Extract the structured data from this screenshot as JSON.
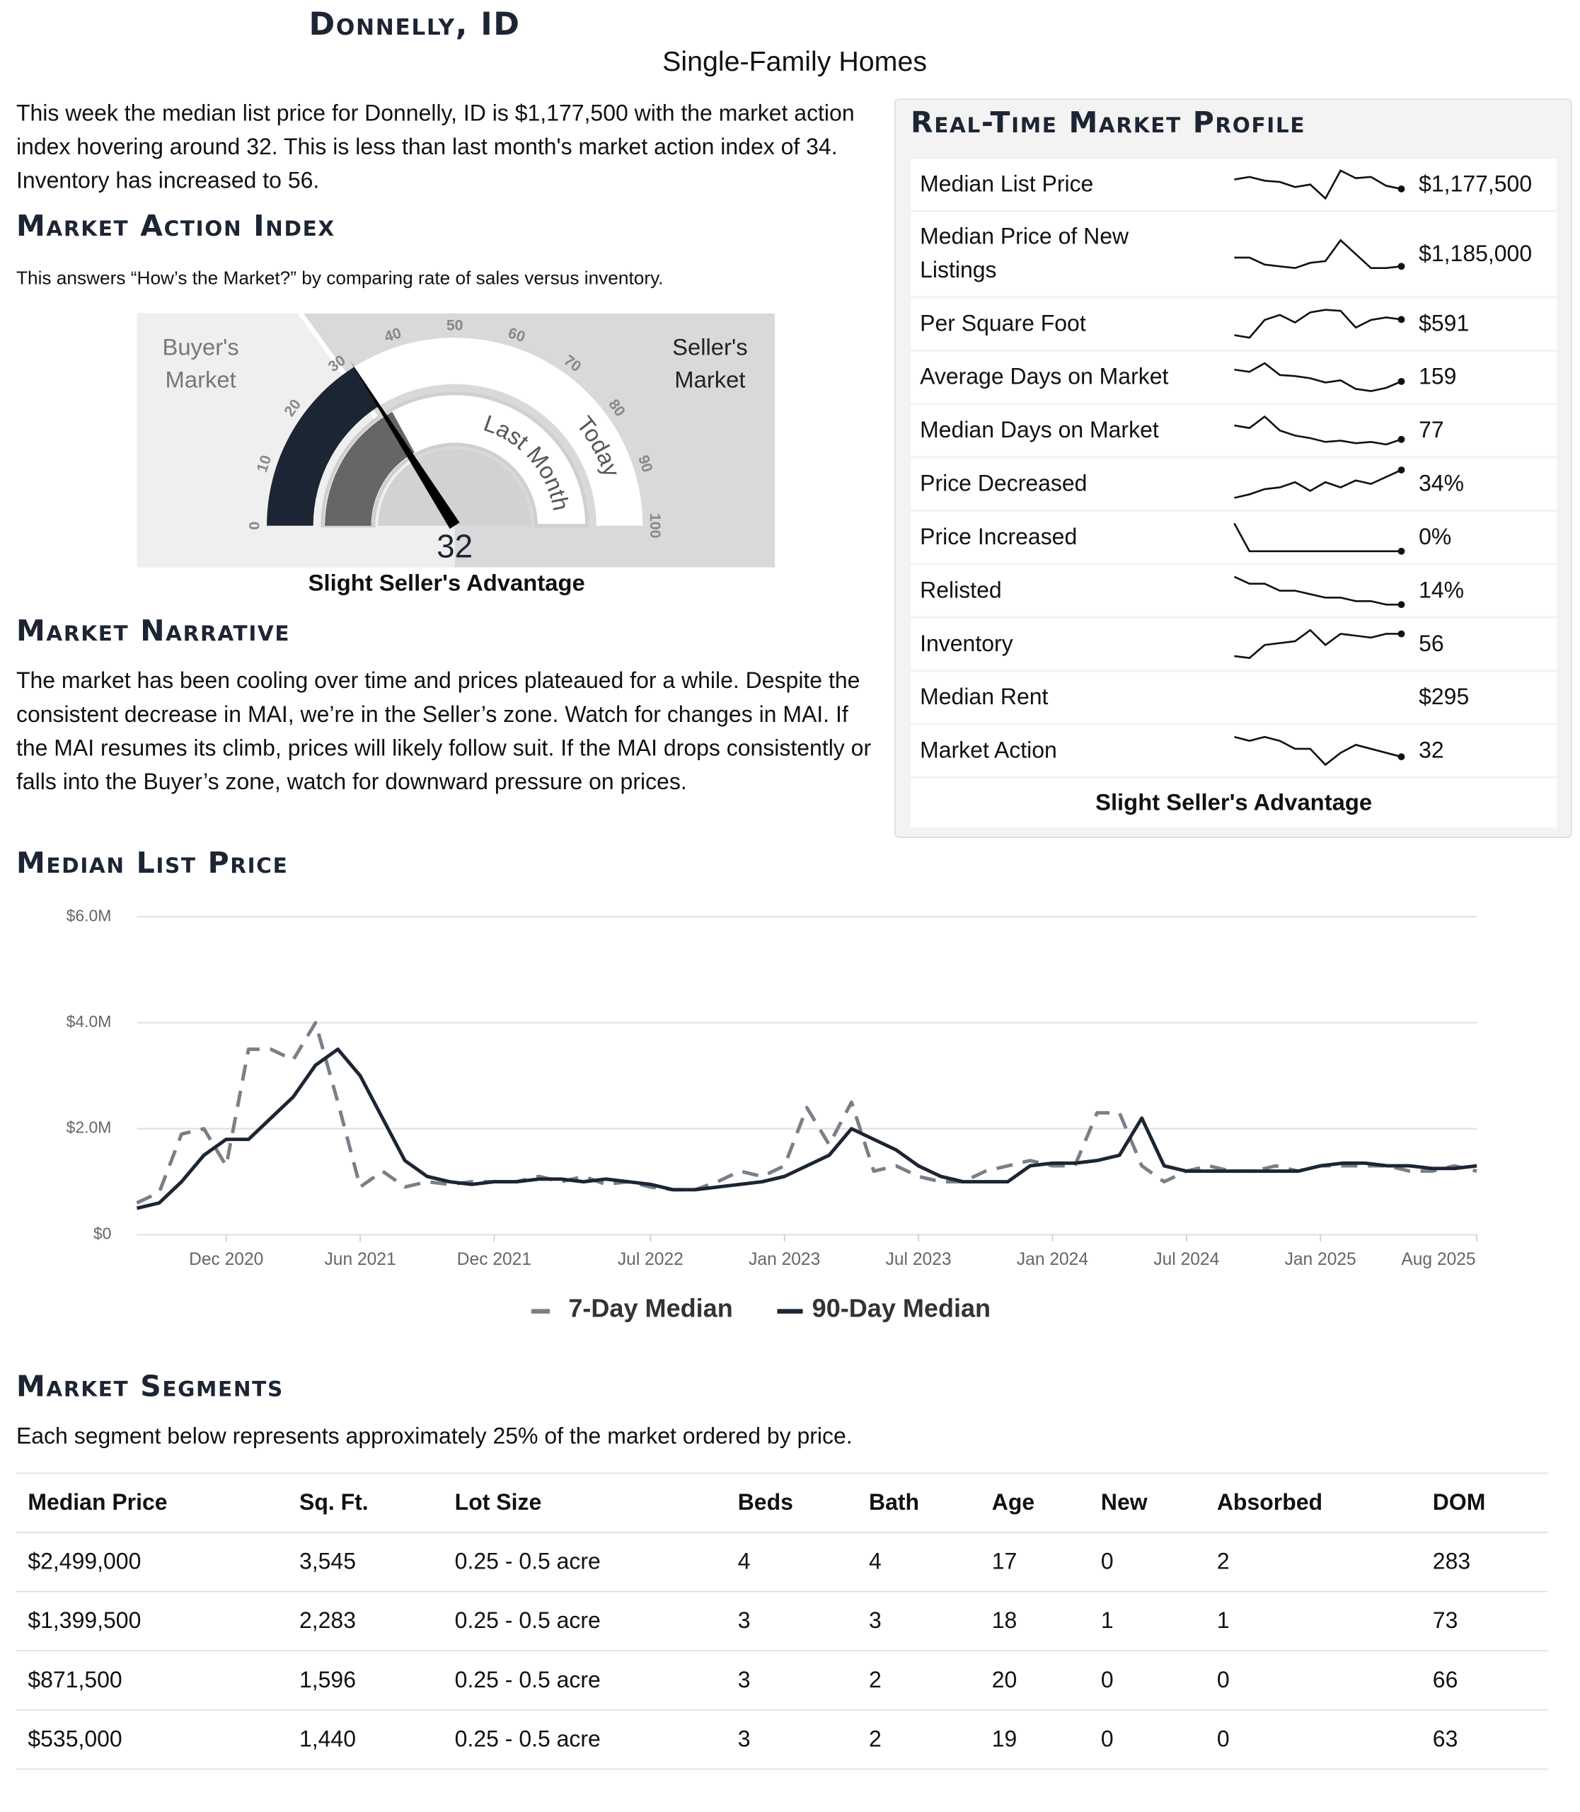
{
  "header": {
    "title": "Donnelly, ID",
    "subtitle": "Single-Family Homes"
  },
  "intro": "This week the median list price for Donnelly, ID is $1,177,500 with the market action index hovering around 32. This is less than last month's market action index of 34. Inventory has increased to 56.",
  "market_action_index": {
    "heading": "Market Action Index",
    "description": "This answers “How’s the Market?” by comparing rate of sales versus inventory.",
    "gauge": {
      "buyer_label": "Buyer's Market",
      "seller_label": "Seller's Market",
      "ticks": [
        0,
        10,
        20,
        30,
        40,
        50,
        60,
        70,
        80,
        90,
        100
      ],
      "value": 32,
      "last_month": 34,
      "buyer_zone_max": 30,
      "last_month_label": "Last Month",
      "today_label": "Today"
    },
    "caption": "Slight Seller's Advantage"
  },
  "narrative": {
    "heading": "Market Narrative",
    "text": "The market has been cooling over time and prices plateaued for a while. Despite the consistent decrease in MAI, we’re in the Seller’s zone. Watch for changes in MAI. If the MAI resumes its climb, prices will likely follow suit. If the MAI drops consistently or falls into the Buyer’s zone, watch for downward pressure on prices."
  },
  "profile": {
    "heading": "Real-Time Market Profile",
    "rows": [
      {
        "label": "Median List Price",
        "value": "$1,177,500",
        "trend": [
          1215000,
          1225000,
          1210000,
          1205000,
          1185000,
          1195000,
          1140000,
          1250000,
          1220000,
          1225000,
          1190000,
          1177500
        ]
      },
      {
        "label": "Median Price of New Listings",
        "value": "$1,185,000",
        "trend": [
          1210000,
          1210000,
          1190000,
          1185000,
          1180000,
          1195000,
          1200000,
          1260000,
          1220000,
          1180000,
          1180000,
          1185000
        ]
      },
      {
        "label": "Per Square Foot",
        "value": "$591",
        "trend": [
          560,
          555,
          590,
          600,
          585,
          605,
          610,
          608,
          575,
          590,
          595,
          591
        ]
      },
      {
        "label": "Average Days on Market",
        "value": "159",
        "trend": [
          170,
          168,
          176,
          165,
          164,
          162,
          158,
          160,
          152,
          150,
          153,
          159
        ]
      },
      {
        "label": "Median Days on Market",
        "value": "77",
        "trend": [
          88,
          86,
          95,
          84,
          80,
          78,
          75,
          76,
          74,
          75,
          73,
          77
        ]
      },
      {
        "label": "Price Decreased",
        "value": "34%",
        "trend": [
          18,
          20,
          23,
          24,
          27,
          22,
          27,
          24,
          28,
          26,
          30,
          34
        ]
      },
      {
        "label": "Price Increased",
        "value": "0%",
        "trend": [
          6,
          0,
          0,
          0,
          0,
          0,
          0,
          0,
          0,
          0,
          0,
          0
        ]
      },
      {
        "label": "Relisted",
        "value": "14%",
        "trend": [
          22,
          20,
          20,
          18,
          18,
          17,
          16,
          16,
          15,
          15,
          14,
          14
        ]
      },
      {
        "label": "Inventory",
        "value": "56",
        "trend": [
          44,
          43,
          50,
          51,
          52,
          58,
          50,
          56,
          55,
          54,
          56,
          56
        ]
      },
      {
        "label": "Median Rent",
        "value": "$295"
      },
      {
        "label": "Market Action",
        "value": "32",
        "trend": [
          37,
          36,
          37,
          36,
          34,
          34,
          30,
          33,
          35,
          34,
          33,
          32
        ]
      }
    ],
    "caption": "Slight Seller's Advantage"
  },
  "chart_data": {
    "type": "line",
    "title": "Median List Price",
    "x": [
      "2020-08",
      "2020-09",
      "2020-10",
      "2020-11",
      "2020-12",
      "2021-01",
      "2021-02",
      "2021-03",
      "2021-04",
      "2021-05",
      "2021-06",
      "2021-07",
      "2021-08",
      "2021-09",
      "2021-10",
      "2021-11",
      "2021-12",
      "2022-01",
      "2022-02",
      "2022-03",
      "2022-04",
      "2022-05",
      "2022-06",
      "2022-07",
      "2022-08",
      "2022-09",
      "2022-10",
      "2022-11",
      "2022-12",
      "2023-01",
      "2023-02",
      "2023-03",
      "2023-04",
      "2023-05",
      "2023-06",
      "2023-07",
      "2023-08",
      "2023-09",
      "2023-10",
      "2023-11",
      "2023-12",
      "2024-01",
      "2024-02",
      "2024-03",
      "2024-04",
      "2024-05",
      "2024-06",
      "2024-07",
      "2024-08",
      "2024-09",
      "2024-10",
      "2024-11",
      "2024-12",
      "2025-01",
      "2025-02",
      "2025-03",
      "2025-04",
      "2025-05",
      "2025-06",
      "2025-07",
      "2025-08"
    ],
    "series": [
      {
        "name": "7-Day Median",
        "color": "#7a7f87",
        "line_style": "dashed",
        "values": [
          0.6,
          0.8,
          1.9,
          2.0,
          1.3,
          3.5,
          3.5,
          3.3,
          4.0,
          2.5,
          0.9,
          1.2,
          0.9,
          1.0,
          0.95,
          1.0,
          1.0,
          1.0,
          1.1,
          1.0,
          1.1,
          0.95,
          1.0,
          0.9,
          0.85,
          0.85,
          1.0,
          1.2,
          1.1,
          1.3,
          2.4,
          1.7,
          2.5,
          1.2,
          1.3,
          1.1,
          1.0,
          1.0,
          1.2,
          1.3,
          1.4,
          1.3,
          1.3,
          2.3,
          2.3,
          1.3,
          1.0,
          1.2,
          1.3,
          1.2,
          1.2,
          1.3,
          1.2,
          1.3,
          1.3,
          1.3,
          1.3,
          1.2,
          1.2,
          1.3,
          1.2
        ]
      },
      {
        "name": "90-Day Median",
        "color": "#1c2533",
        "line_style": "solid",
        "values": [
          0.5,
          0.6,
          1.0,
          1.5,
          1.8,
          1.8,
          2.2,
          2.6,
          3.2,
          3.5,
          3.0,
          2.2,
          1.4,
          1.1,
          1.0,
          0.95,
          1.0,
          1.0,
          1.05,
          1.05,
          1.0,
          1.05,
          1.0,
          0.95,
          0.85,
          0.85,
          0.9,
          0.95,
          1.0,
          1.1,
          1.3,
          1.5,
          2.0,
          1.8,
          1.6,
          1.3,
          1.1,
          1.0,
          1.0,
          1.0,
          1.3,
          1.35,
          1.35,
          1.4,
          1.5,
          2.2,
          1.3,
          1.2,
          1.2,
          1.2,
          1.2,
          1.2,
          1.2,
          1.3,
          1.35,
          1.35,
          1.3,
          1.3,
          1.25,
          1.25,
          1.3
        ]
      }
    ],
    "xlim": [
      "2020-08",
      "2025-08"
    ],
    "xticks": [
      {
        "value": "2020-12",
        "label": "Dec 2020"
      },
      {
        "value": "2021-06",
        "label": "Jun 2021"
      },
      {
        "value": "2021-12",
        "label": "Dec 2021"
      },
      {
        "value": "2022-07",
        "label": "Jul 2022"
      },
      {
        "value": "2023-01",
        "label": "Jan 2023"
      },
      {
        "value": "2023-07",
        "label": "Jul 2023"
      },
      {
        "value": "2024-01",
        "label": "Jan 2024"
      },
      {
        "value": "2024-07",
        "label": "Jul 2024"
      },
      {
        "value": "2025-01",
        "label": "Jan 2025"
      },
      {
        "value": "2025-08",
        "label": "Aug 2025"
      }
    ],
    "ylim": [
      0,
      6
    ],
    "yticks": [
      {
        "value": 0,
        "label": "$0"
      },
      {
        "value": 2,
        "label": "$2.0M"
      },
      {
        "value": 4,
        "label": "$4.0M"
      },
      {
        "value": 6,
        "label": "$6.0M"
      }
    ],
    "grid": true,
    "legend": "bottom"
  },
  "segments": {
    "heading": "Market Segments",
    "description": "Each segment below represents approximately 25% of the market ordered by price.",
    "table": {
      "columns": [
        "Median Price",
        "Sq. Ft.",
        "Lot Size",
        "Beds",
        "Bath",
        "Age",
        "New",
        "Absorbed",
        "DOM"
      ],
      "rows": [
        [
          "$2,499,000",
          "3,545",
          "0.25 - 0.5 acre",
          "4",
          "4",
          "17",
          "0",
          "2",
          "283"
        ],
        [
          "$1,399,500",
          "2,283",
          "0.25 - 0.5 acre",
          "3",
          "3",
          "18",
          "1",
          "1",
          "73"
        ],
        [
          "$871,500",
          "1,596",
          "0.25 - 0.5 acre",
          "3",
          "2",
          "20",
          "0",
          "0",
          "66"
        ],
        [
          "$535,000",
          "1,440",
          "0.25 - 0.5 acre",
          "3",
          "2",
          "19",
          "0",
          "0",
          "63"
        ]
      ]
    }
  }
}
